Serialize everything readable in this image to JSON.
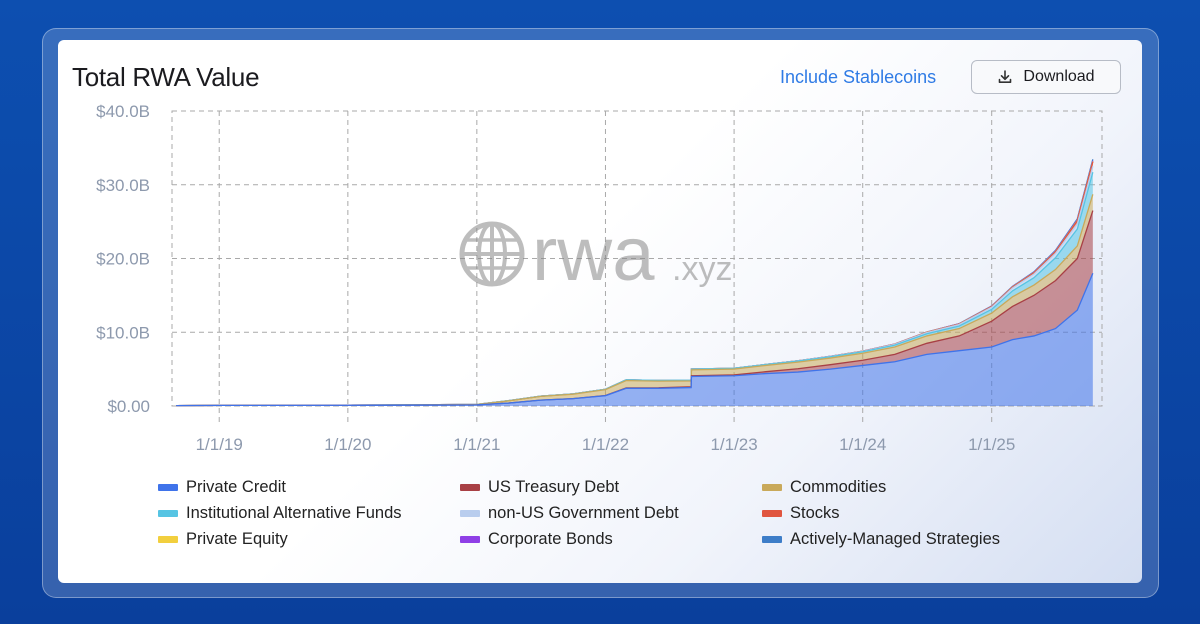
{
  "card": {
    "title": "Total RWA Value",
    "include_stablecoins_label": "Include Stablecoins",
    "download_label": "Download",
    "download_icon": "download-icon",
    "watermark_text": "rwa",
    "watermark_suffix": ".xyz",
    "watermark_icon": "globe-icon"
  },
  "chart_data": {
    "type": "area",
    "stacked": true,
    "title": "Total RWA Value",
    "xlabel": "",
    "ylabel": "",
    "y_unit": "USD billions",
    "ylim": [
      0,
      40
    ],
    "y_ticks": [
      0,
      10,
      20,
      30,
      40
    ],
    "y_tick_labels": [
      "$0.00",
      "$10.0B",
      "$20.0B",
      "$30.0B",
      "$40.0B"
    ],
    "xlim": [
      "2018-08-20",
      "2025-11-10"
    ],
    "x_ticks": [
      "2019-01-01",
      "2020-01-01",
      "2021-01-01",
      "2022-01-01",
      "2023-01-01",
      "2024-01-01",
      "2025-01-01"
    ],
    "x_tick_labels": [
      "1/1/19",
      "1/1/20",
      "1/1/21",
      "1/1/22",
      "1/1/23",
      "1/1/24",
      "1/1/25"
    ],
    "grid": true,
    "legend_position": "bottom",
    "x": [
      "2018-09-01",
      "2019-01-01",
      "2020-01-01",
      "2021-01-01",
      "2021-04-01",
      "2021-07-01",
      "2021-10-01",
      "2022-01-01",
      "2022-03-01",
      "2022-06-01",
      "2022-09-01",
      "2022-09-02",
      "2023-01-01",
      "2023-04-01",
      "2023-07-01",
      "2023-10-01",
      "2024-01-01",
      "2024-04-01",
      "2024-07-01",
      "2024-10-01",
      "2025-01-01",
      "2025-03-01",
      "2025-05-01",
      "2025-07-01",
      "2025-09-01",
      "2025-10-15"
    ],
    "series": [
      {
        "name": "Private Credit",
        "color": "#3f73ea",
        "values": [
          0.05,
          0.08,
          0.1,
          0.15,
          0.4,
          0.8,
          1.0,
          1.4,
          2.4,
          2.4,
          2.5,
          4.0,
          4.1,
          4.4,
          4.6,
          5.0,
          5.5,
          6.0,
          7.0,
          7.5,
          8.0,
          9.0,
          9.5,
          10.5,
          13.0,
          18.0
        ]
      },
      {
        "name": "US Treasury Debt",
        "color": "#a84045",
        "values": [
          0,
          0,
          0,
          0,
          0,
          0,
          0,
          0.02,
          0.05,
          0.07,
          0.1,
          0.1,
          0.11,
          0.25,
          0.45,
          0.6,
          0.7,
          1.0,
          1.5,
          2.0,
          3.5,
          4.5,
          5.5,
          6.5,
          7.0,
          8.5
        ]
      },
      {
        "name": "Commodities",
        "color": "#c9a95a",
        "values": [
          0,
          0,
          0.01,
          0.05,
          0.3,
          0.5,
          0.6,
          0.8,
          1.0,
          0.9,
          0.8,
          0.8,
          0.8,
          0.85,
          0.9,
          0.9,
          0.95,
          1.0,
          1.0,
          1.0,
          1.1,
          1.3,
          1.4,
          1.5,
          1.7,
          2.2
        ]
      },
      {
        "name": "Institutional Alternative Funds",
        "color": "#56c4e3",
        "values": [
          0,
          0,
          0,
          0.01,
          0.02,
          0.03,
          0.04,
          0.05,
          0.1,
          0.1,
          0.1,
          0.1,
          0.1,
          0.12,
          0.15,
          0.18,
          0.2,
          0.25,
          0.3,
          0.35,
          0.5,
          0.8,
          1.0,
          1.6,
          2.3,
          3.0
        ]
      },
      {
        "name": "non-US Government Debt",
        "color": "#b9cdee",
        "values": [
          0,
          0,
          0,
          0,
          0,
          0,
          0,
          0,
          0,
          0,
          0.01,
          0.01,
          0.01,
          0.02,
          0.03,
          0.04,
          0.05,
          0.1,
          0.15,
          0.2,
          0.3,
          0.4,
          0.5,
          0.6,
          0.7,
          0.8
        ]
      },
      {
        "name": "Stocks",
        "color": "#e0553f",
        "values": [
          0,
          0,
          0,
          0,
          0,
          0,
          0,
          0,
          0,
          0,
          0,
          0,
          0,
          0,
          0.01,
          0.01,
          0.02,
          0.03,
          0.04,
          0.05,
          0.08,
          0.1,
          0.15,
          0.2,
          0.4,
          0.6
        ]
      },
      {
        "name": "Private Equity",
        "color": "#f2cf3e",
        "values": [
          0,
          0,
          0,
          0,
          0,
          0,
          0,
          0,
          0,
          0,
          0,
          0,
          0,
          0,
          0,
          0,
          0.01,
          0.01,
          0.02,
          0.02,
          0.02,
          0.03,
          0.03,
          0.04,
          0.05,
          0.05
        ]
      },
      {
        "name": "Corporate Bonds",
        "color": "#8f3fe6",
        "values": [
          0,
          0,
          0,
          0,
          0,
          0,
          0,
          0,
          0,
          0,
          0,
          0,
          0,
          0,
          0,
          0.01,
          0.01,
          0.02,
          0.02,
          0.03,
          0.03,
          0.04,
          0.05,
          0.06,
          0.08,
          0.1
        ]
      },
      {
        "name": "Actively-Managed Strategies",
        "color": "#3d7dc8",
        "values": [
          0,
          0,
          0,
          0,
          0,
          0,
          0,
          0,
          0,
          0,
          0,
          0,
          0,
          0,
          0,
          0,
          0,
          0,
          0.01,
          0.02,
          0.03,
          0.05,
          0.07,
          0.1,
          0.15,
          0.2
        ]
      }
    ]
  }
}
